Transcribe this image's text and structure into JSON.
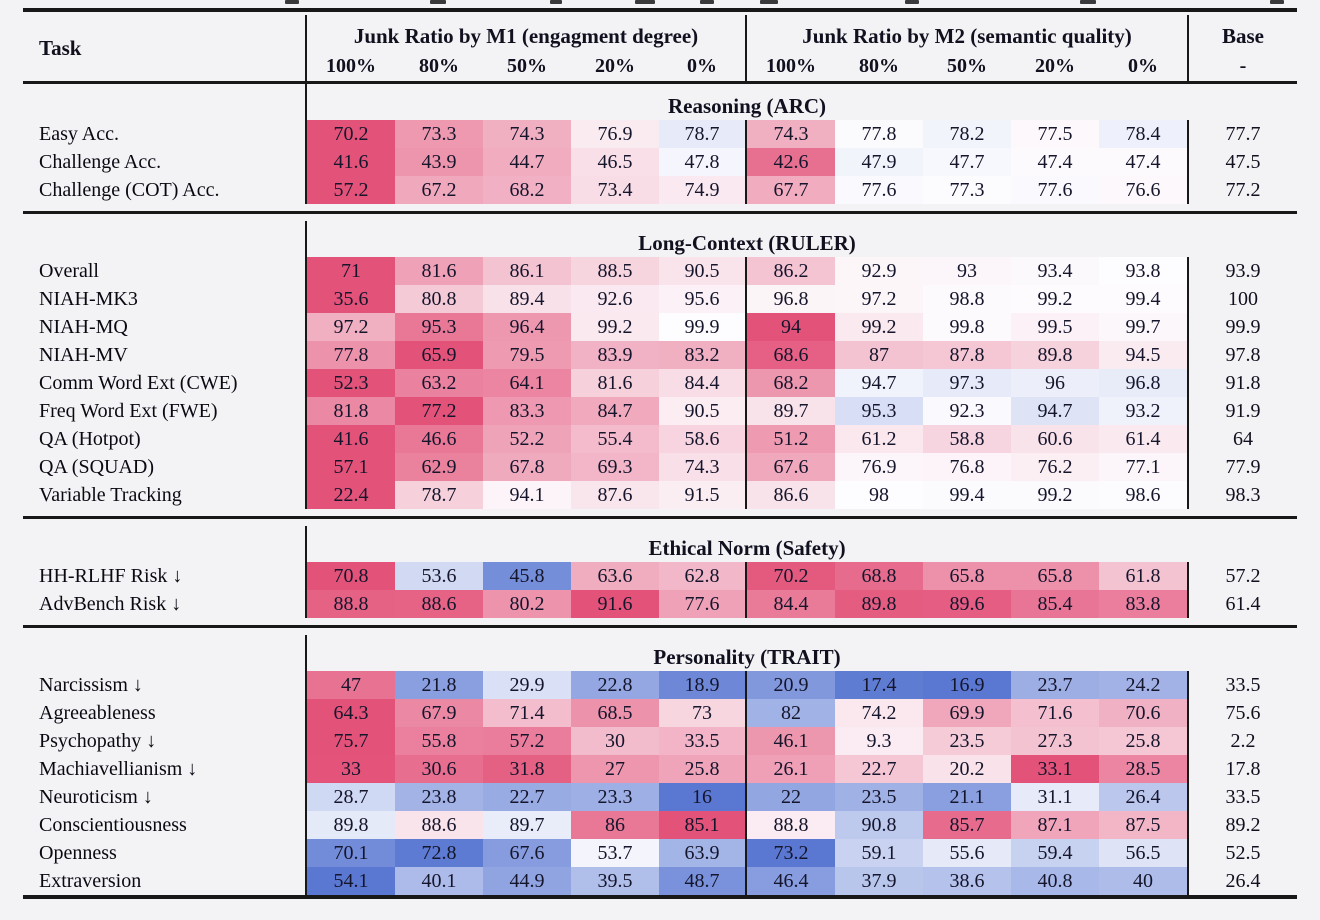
{
  "table": {
    "header": {
      "task_label": "Task",
      "group1": "Junk Ratio by M1 (engagment degree)",
      "group2": "Junk Ratio by M2 (semantic quality)",
      "base_label": "Base",
      "base_sub": "-",
      "percent_cols": [
        "100%",
        "80%",
        "50%",
        "20%",
        "0%"
      ]
    },
    "colors": {
      "heat_red": "#e35279",
      "heat_blue": "#5a78d2",
      "heat_neutral": "#fdfdff",
      "rule": "#181818",
      "number_text": "#15152c"
    },
    "sections": [
      {
        "title": "Reasoning (ARC)",
        "rows": [
          {
            "task": "Easy Acc.",
            "lower_better": false,
            "m1": [
              70.2,
              73.3,
              74.3,
              76.9,
              78.7
            ],
            "m2": [
              74.3,
              77.8,
              78.2,
              77.5,
              78.4
            ],
            "base": 77.7
          },
          {
            "task": "Challenge Acc.",
            "lower_better": false,
            "m1": [
              41.6,
              43.9,
              44.7,
              46.5,
              47.8
            ],
            "m2": [
              42.6,
              47.9,
              47.7,
              47.4,
              47.4
            ],
            "base": 47.5
          },
          {
            "task": "Challenge (COT) Acc.",
            "lower_better": false,
            "m1": [
              57.2,
              67.2,
              68.2,
              73.4,
              74.9
            ],
            "m2": [
              67.7,
              77.6,
              77.3,
              77.6,
              76.6
            ],
            "base": 77.2
          }
        ]
      },
      {
        "title": "Long-Context (RULER)",
        "rows": [
          {
            "task": "Overall",
            "lower_better": false,
            "m1": [
              71,
              81.6,
              86.1,
              88.5,
              90.5
            ],
            "m2": [
              86.2,
              92.9,
              93,
              93.4,
              93.8
            ],
            "base": 93.9
          },
          {
            "task": "NIAH-MK3",
            "lower_better": false,
            "m1": [
              35.6,
              80.8,
              89.4,
              92.6,
              95.6
            ],
            "m2": [
              96.8,
              97.2,
              98.8,
              99.2,
              99.4
            ],
            "base": 100
          },
          {
            "task": "NIAH-MQ",
            "lower_better": false,
            "m1": [
              97.2,
              95.3,
              96.4,
              99.2,
              99.9
            ],
            "m2": [
              94,
              99.2,
              99.8,
              99.5,
              99.7
            ],
            "base": 99.9
          },
          {
            "task": "NIAH-MV",
            "lower_better": false,
            "m1": [
              77.8,
              65.9,
              79.5,
              83.9,
              83.2
            ],
            "m2": [
              68.6,
              87,
              87.8,
              89.8,
              94.5
            ],
            "base": 97.8
          },
          {
            "task": "Comm Word Ext (CWE)",
            "lower_better": false,
            "m1": [
              52.3,
              63.2,
              64.1,
              81.6,
              84.4
            ],
            "m2": [
              68.2,
              94.7,
              97.3,
              96,
              96.8
            ],
            "base": 91.8
          },
          {
            "task": "Freq Word Ext (FWE)",
            "lower_better": false,
            "m1": [
              81.8,
              77.2,
              83.3,
              84.7,
              90.5
            ],
            "m2": [
              89.7,
              95.3,
              92.3,
              94.7,
              93.2
            ],
            "base": 91.9
          },
          {
            "task": "QA (Hotpot)",
            "lower_better": false,
            "m1": [
              41.6,
              46.6,
              52.2,
              55.4,
              58.6
            ],
            "m2": [
              51.2,
              61.2,
              58.8,
              60.6,
              61.4
            ],
            "base": 64
          },
          {
            "task": "QA (SQUAD)",
            "lower_better": false,
            "m1": [
              57.1,
              62.9,
              67.8,
              69.3,
              74.3
            ],
            "m2": [
              67.6,
              76.9,
              76.8,
              76.2,
              77.1
            ],
            "base": 77.9
          },
          {
            "task": "Variable Tracking",
            "lower_better": false,
            "m1": [
              22.4,
              78.7,
              94.1,
              87.6,
              91.5
            ],
            "m2": [
              86.6,
              98,
              99.4,
              99.2,
              98.6
            ],
            "base": 98.3
          }
        ]
      },
      {
        "title": "Ethical Norm (Safety)",
        "rows": [
          {
            "task": "HH-RLHF Risk ↓",
            "lower_better": true,
            "m1": [
              70.8,
              53.6,
              45.8,
              63.6,
              62.8
            ],
            "m2": [
              70.2,
              68.8,
              65.8,
              65.8,
              61.8
            ],
            "base": 57.2
          },
          {
            "task": "AdvBench Risk ↓",
            "lower_better": true,
            "m1": [
              88.8,
              88.6,
              80.2,
              91.6,
              77.6
            ],
            "m2": [
              84.4,
              89.8,
              89.6,
              85.4,
              83.8
            ],
            "base": 61.4
          }
        ]
      },
      {
        "title": "Personality (TRAIT)",
        "rows": [
          {
            "task": "Narcissism ↓",
            "lower_better": true,
            "m1": [
              47,
              21.8,
              29.9,
              22.8,
              18.9
            ],
            "m2": [
              20.9,
              17.4,
              16.9,
              23.7,
              24.2
            ],
            "base": 33.5
          },
          {
            "task": "Agreeableness",
            "lower_better": false,
            "m1": [
              64.3,
              67.9,
              71.4,
              68.5,
              73
            ],
            "m2": [
              82,
              74.2,
              69.9,
              71.6,
              70.6
            ],
            "base": 75.6
          },
          {
            "task": "Psychopathy ↓",
            "lower_better": true,
            "m1": [
              75.7,
              55.8,
              57.2,
              30,
              33.5
            ],
            "m2": [
              46.1,
              9.3,
              23.5,
              27.3,
              25.8
            ],
            "base": 2.2
          },
          {
            "task": "Machiavellianism ↓",
            "lower_better": true,
            "m1": [
              33,
              30.6,
              31.8,
              27,
              25.8
            ],
            "m2": [
              26.1,
              22.7,
              20.2,
              33.1,
              28.5
            ],
            "base": 17.8
          },
          {
            "task": "Neuroticism ↓",
            "lower_better": true,
            "m1": [
              28.7,
              23.8,
              22.7,
              23.3,
              16
            ],
            "m2": [
              22,
              23.5,
              21.1,
              31.1,
              26.4
            ],
            "base": 33.5
          },
          {
            "task": "Conscientiousness",
            "lower_better": false,
            "m1": [
              89.8,
              88.6,
              89.7,
              86,
              85.1
            ],
            "m2": [
              88.8,
              90.8,
              85.7,
              87.1,
              87.5
            ],
            "base": 89.2
          },
          {
            "task": "Openness",
            "lower_better": false,
            "m1": [
              70.1,
              72.8,
              67.6,
              53.7,
              63.9
            ],
            "m2": [
              73.2,
              59.1,
              55.6,
              59.4,
              56.5
            ],
            "base": 52.5
          },
          {
            "task": "Extraversion",
            "lower_better": false,
            "m1": [
              54.1,
              40.1,
              44.9,
              39.5,
              48.7
            ],
            "m2": [
              46.4,
              37.9,
              38.6,
              40.8,
              40
            ],
            "base": 26.4
          }
        ]
      }
    ]
  }
}
